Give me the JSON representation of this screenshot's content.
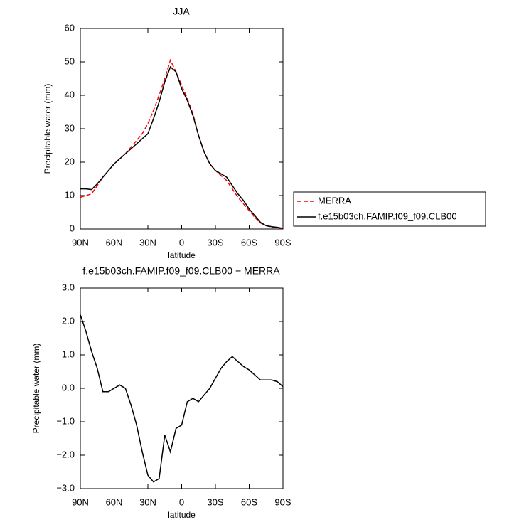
{
  "chart_data": [
    {
      "type": "line",
      "title": "JJA",
      "x_label": "latitude",
      "y_label": "Precipitable water (mm)",
      "x": [
        90,
        85,
        80,
        75,
        70,
        65,
        60,
        55,
        50,
        45,
        40,
        35,
        30,
        25,
        20,
        15,
        10,
        5,
        0,
        -5,
        -10,
        -15,
        -20,
        -25,
        -30,
        -35,
        -40,
        -45,
        -50,
        -55,
        -60,
        -65,
        -70,
        -75,
        -80,
        -85,
        -90
      ],
      "series": [
        {
          "name": "MERRA",
          "color": "#ff0000",
          "linestyle": "dashed",
          "values": [
            9.5,
            10,
            10.5,
            13,
            15.5,
            17.5,
            19.5,
            21,
            22.5,
            24.5,
            26.5,
            28.5,
            31.5,
            35.5,
            40,
            45,
            50.5,
            47,
            43,
            39,
            34.5,
            28,
            23,
            19.5,
            17.5,
            16,
            14.5,
            12,
            9.5,
            7.5,
            5.5,
            3.5,
            1.8,
            1,
            0.6,
            0.4,
            0.1
          ]
        },
        {
          "name": "f.e15b03ch.FAMIP.f09_f09.CLB00",
          "color": "#000000",
          "linestyle": "solid",
          "values": [
            12,
            12,
            11.8,
            13.5,
            15.5,
            17.5,
            19.5,
            21,
            22.5,
            24,
            25.5,
            27,
            28.5,
            33,
            38,
            44,
            48.5,
            47,
            42,
            38.5,
            34,
            28,
            23,
            19.5,
            17.5,
            16.5,
            15.5,
            13,
            10.5,
            8.5,
            6,
            4,
            2,
            1,
            0.7,
            0.5,
            0.2
          ]
        }
      ],
      "xlim": [
        90,
        -90
      ],
      "xticks": [
        {
          "value": 90,
          "label": "90N"
        },
        {
          "value": 60,
          "label": "60N"
        },
        {
          "value": 30,
          "label": "30N"
        },
        0,
        {
          "value": -30,
          "label": "30S"
        },
        {
          "value": -60,
          "label": "60S"
        },
        {
          "value": -90,
          "label": "90S"
        }
      ],
      "ylim": [
        0,
        60
      ],
      "yticks": [
        0,
        10,
        20,
        30,
        40,
        50,
        60
      ],
      "legend": "right"
    },
    {
      "type": "line",
      "title": "f.e15b03ch.FAMIP.f09_f09.CLB00 − MERRA",
      "x_label": "latitude",
      "y_label": "Precipitable water (mm)",
      "x": [
        90,
        85,
        80,
        75,
        70,
        65,
        60,
        55,
        50,
        45,
        40,
        35,
        30,
        25,
        20,
        15,
        10,
        5,
        0,
        -5,
        -10,
        -15,
        -20,
        -25,
        -30,
        -35,
        -40,
        -45,
        -50,
        -55,
        -60,
        -65,
        -70,
        -75,
        -80,
        -85,
        -90
      ],
      "series": [
        {
          "color": "#000000",
          "linestyle": "solid",
          "values": [
            2.2,
            1.7,
            1.1,
            0.6,
            -0.1,
            -0.1,
            0.0,
            0.1,
            0.0,
            -0.5,
            -1.1,
            -1.9,
            -2.6,
            -2.8,
            -2.7,
            -1.4,
            -1.9,
            -1.2,
            -1.1,
            -0.4,
            -0.3,
            -0.4,
            -0.2,
            0.0,
            0.3,
            0.6,
            0.8,
            0.95,
            0.8,
            0.65,
            0.55,
            0.4,
            0.25,
            0.25,
            0.25,
            0.2,
            0.05
          ]
        }
      ],
      "xlim": [
        90,
        -90
      ],
      "xticks": [
        {
          "value": 90,
          "label": "90N"
        },
        {
          "value": 60,
          "label": "60N"
        },
        {
          "value": 30,
          "label": "30N"
        },
        0,
        {
          "value": -30,
          "label": "30S"
        },
        {
          "value": -60,
          "label": "60S"
        },
        {
          "value": -90,
          "label": "90S"
        }
      ],
      "ylim": [
        -3,
        3
      ],
      "yticks": [
        {
          "value": -3,
          "label": "−3.0"
        },
        {
          "value": -2,
          "label": "−2.0"
        },
        {
          "value": -1,
          "label": "−1.0"
        },
        {
          "value": 0,
          "label": "0.0"
        },
        {
          "value": 1,
          "label": "1.0"
        },
        {
          "value": 2,
          "label": "2.0"
        },
        {
          "value": 3,
          "label": "3.0"
        }
      ]
    }
  ]
}
